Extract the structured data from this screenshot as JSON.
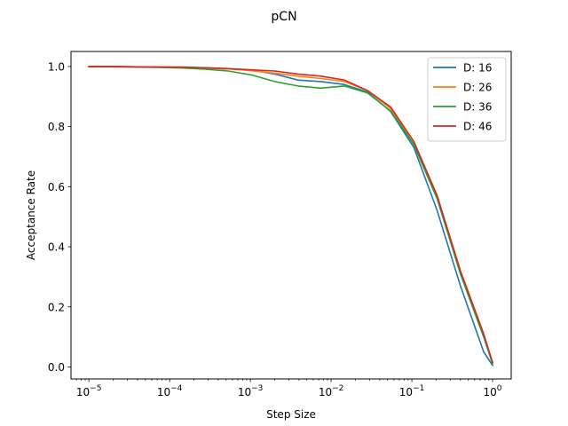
{
  "chart_data": {
    "type": "line",
    "title": "pCN",
    "xlabel": "Step Size",
    "ylabel": "Acceptance Rate",
    "xscale": "log",
    "xlim": [
      6e-06,
      1.7
    ],
    "ylim": [
      -0.04,
      1.05
    ],
    "x": [
      1e-05,
      1.94e-05,
      3.76e-05,
      7.28e-05,
      0.000141,
      0.000274,
      0.000531,
      0.00103,
      0.002,
      0.00387,
      0.0075,
      0.0146,
      0.0282,
      0.0547,
      0.106,
      0.206,
      0.4,
      0.775,
      1.0
    ],
    "xticks": [
      {
        "value": 1e-05,
        "label": "10−5"
      },
      {
        "value": 0.0001,
        "label": "10−4"
      },
      {
        "value": 0.001,
        "label": "10−3"
      },
      {
        "value": 0.01,
        "label": "10−2"
      },
      {
        "value": 0.1,
        "label": "10−1"
      },
      {
        "value": 1,
        "label": "100"
      }
    ],
    "yticks": [
      {
        "value": 0.0,
        "label": "0.0"
      },
      {
        "value": 0.2,
        "label": "0.2"
      },
      {
        "value": 0.4,
        "label": "0.4"
      },
      {
        "value": 0.6,
        "label": "0.6"
      },
      {
        "value": 0.8,
        "label": "0.8"
      },
      {
        "value": 1.0,
        "label": "1.0"
      }
    ],
    "grid": false,
    "legend_position": "top-right",
    "series": [
      {
        "name": "D: 16",
        "color": "#1f77b4",
        "values": [
          1.0,
          1.0,
          0.999,
          0.998,
          0.997,
          0.995,
          0.992,
          0.988,
          0.975,
          0.955,
          0.95,
          0.94,
          0.915,
          0.85,
          0.73,
          0.52,
          0.27,
          0.05,
          0.005
        ]
      },
      {
        "name": "D: 26",
        "color": "#ff7f0e",
        "values": [
          1.0,
          1.0,
          0.999,
          0.998,
          0.997,
          0.995,
          0.992,
          0.986,
          0.978,
          0.968,
          0.96,
          0.95,
          0.92,
          0.86,
          0.74,
          0.56,
          0.31,
          0.1,
          0.015
        ]
      },
      {
        "name": "D: 36",
        "color": "#2ca02c",
        "values": [
          0.999,
          0.999,
          0.998,
          0.997,
          0.995,
          0.991,
          0.985,
          0.972,
          0.95,
          0.935,
          0.928,
          0.935,
          0.912,
          0.852,
          0.74,
          0.56,
          0.31,
          0.1,
          0.01
        ]
      },
      {
        "name": "D: 46",
        "color": "#d62728",
        "values": [
          1.0,
          1.0,
          0.999,
          0.998,
          0.998,
          0.996,
          0.993,
          0.989,
          0.985,
          0.975,
          0.968,
          0.955,
          0.92,
          0.865,
          0.75,
          0.57,
          0.32,
          0.11,
          0.015
        ]
      }
    ]
  }
}
